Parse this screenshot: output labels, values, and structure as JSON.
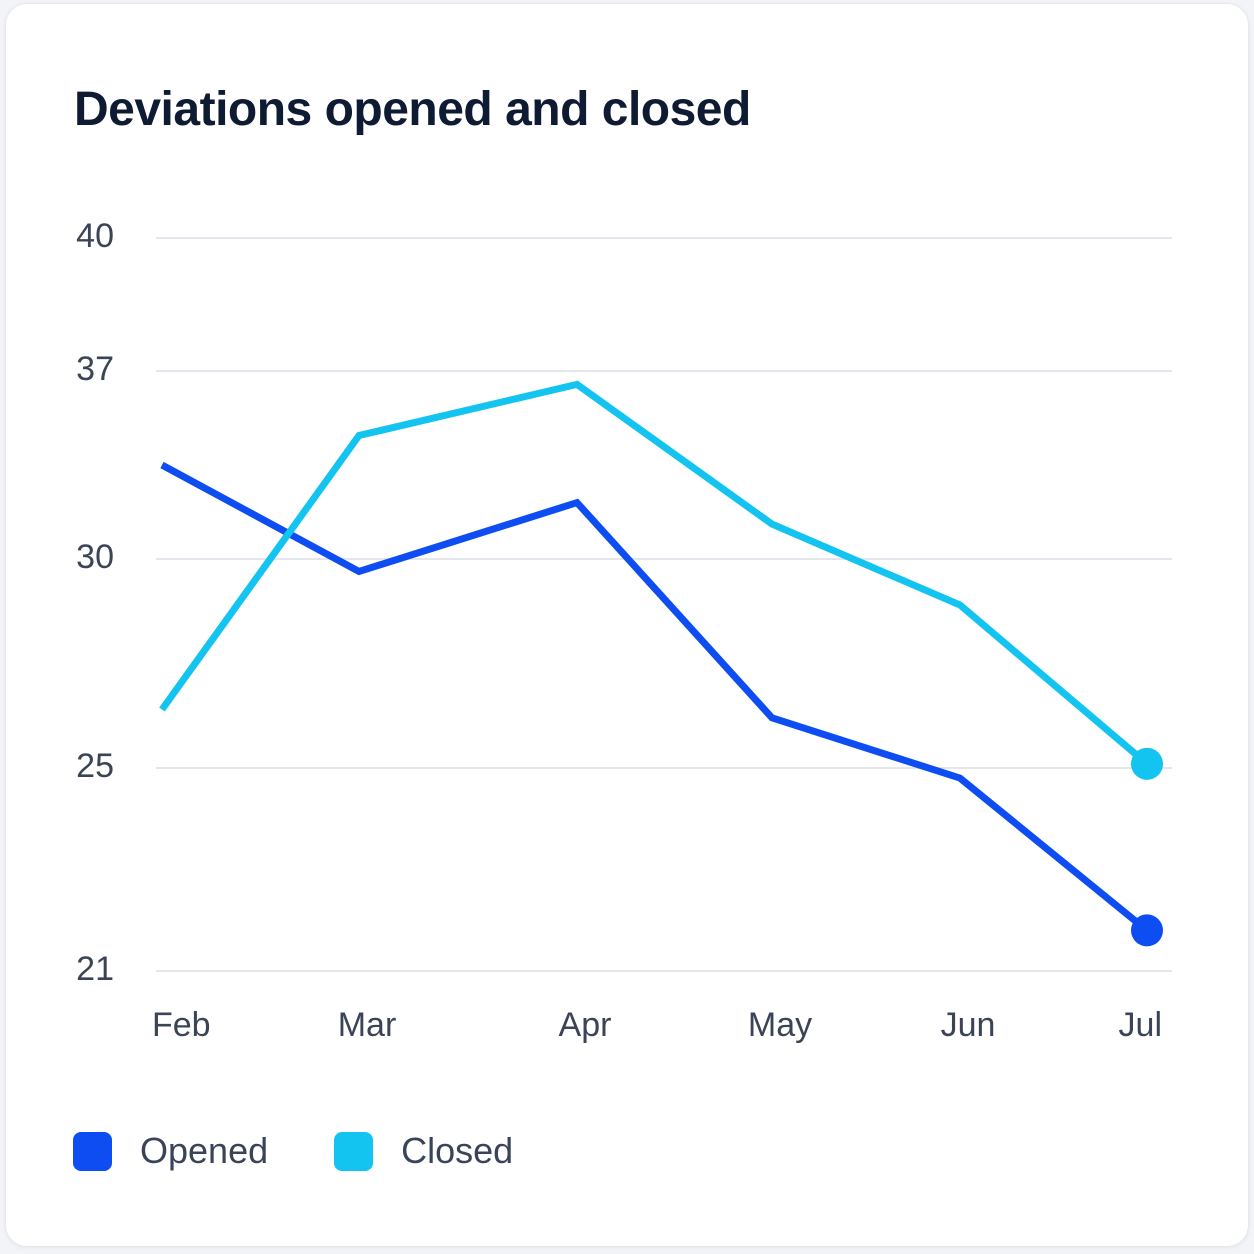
{
  "chart_data": {
    "type": "line",
    "title": "Deviations opened and closed",
    "categories": [
      "Feb",
      "Mar",
      "Apr",
      "May",
      "Jun",
      "Jul"
    ],
    "y_ticks": [
      21,
      25,
      30,
      37,
      40
    ],
    "series": [
      {
        "name": "Opened",
        "color": "#0d4df2",
        "values": [
          33.5,
          29.7,
          32.1,
          26.2,
          24.8,
          21.8
        ]
      },
      {
        "name": "Closed",
        "color": "#14c4f0",
        "values": [
          26.4,
          34.6,
          36.5,
          31.3,
          28.9,
          25.1
        ]
      }
    ],
    "grid": true,
    "legend_position": "bottom-left"
  }
}
